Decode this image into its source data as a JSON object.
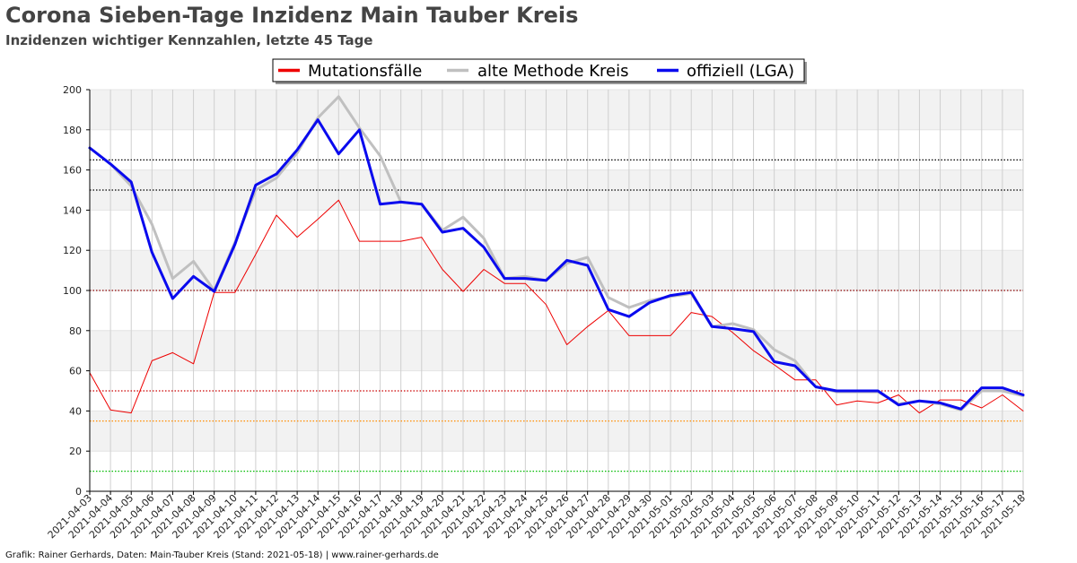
{
  "header": {
    "title": "Corona Sieben-Tage Inzidenz Main Tauber Kreis",
    "subtitle": "Inzidenzen wichtiger Kennzahlen, letzte 45 Tage"
  },
  "footer": {
    "text": "Grafik: Rainer Gerhards, Daten: Main-Tauber Kreis (Stand: 2021-05-18) | www.rainer-gerhards.de"
  },
  "chart_data": {
    "type": "line",
    "title": "Corona Sieben-Tage Inzidenz Main Tauber Kreis",
    "subtitle": "Inzidenzen wichtiger Kennzahlen, letzte 45 Tage",
    "xlabel": "",
    "ylabel": "",
    "ylim": [
      0,
      200
    ],
    "yticks": [
      0,
      20,
      40,
      60,
      80,
      100,
      120,
      140,
      160,
      180,
      200
    ],
    "grid": true,
    "legend_position": "top-center",
    "x": [
      "2021-04-03",
      "2021-04-04",
      "2021-04-05",
      "2021-04-06",
      "2021-04-07",
      "2021-04-08",
      "2021-04-09",
      "2021-04-10",
      "2021-04-11",
      "2021-04-12",
      "2021-04-13",
      "2021-04-14",
      "2021-04-15",
      "2021-04-16",
      "2021-04-17",
      "2021-04-18",
      "2021-04-19",
      "2021-04-20",
      "2021-04-21",
      "2021-04-22",
      "2021-04-23",
      "2021-04-24",
      "2021-04-25",
      "2021-04-26",
      "2021-04-27",
      "2021-04-28",
      "2021-04-29",
      "2021-04-30",
      "2021-05-01",
      "2021-05-02",
      "2021-05-03",
      "2021-05-04",
      "2021-05-05",
      "2021-05-06",
      "2021-05-07",
      "2021-05-08",
      "2021-05-09",
      "2021-05-10",
      "2021-05-11",
      "2021-05-12",
      "2021-05-13",
      "2021-05-14",
      "2021-05-15",
      "2021-05-16",
      "2021-05-17",
      "2021-05-18"
    ],
    "series": [
      {
        "name": "Mutationsfälle",
        "color": "#ee0000",
        "values": [
          59,
          40.5,
          39,
          65,
          69,
          63.5,
          99,
          99,
          118,
          137.5,
          126.5,
          135.5,
          145,
          124.5,
          124.5,
          124.5,
          126.5,
          110.5,
          99.5,
          110.5,
          103.5,
          103.5,
          93,
          73,
          82,
          90,
          77.5,
          77.5,
          77.5,
          89,
          87,
          79,
          70,
          63,
          55.5,
          55.5,
          43,
          45,
          44,
          48,
          39,
          45.5,
          45.5,
          41.5,
          48,
          40
        ]
      },
      {
        "name": "alte Methode Kreis",
        "color": "#c0c0c0",
        "values": [
          171,
          163,
          152,
          133,
          106,
          114.5,
          100,
          124,
          150,
          156,
          168.5,
          186,
          196.5,
          181,
          167,
          144,
          143,
          130,
          136.5,
          126,
          106,
          107,
          105,
          113.5,
          116.5,
          96.5,
          91.5,
          95,
          97,
          98.5,
          82,
          83.5,
          80.5,
          70.5,
          65,
          52,
          49.5,
          49.5,
          49.5,
          43.5,
          45,
          43.5,
          40.5,
          50,
          50,
          47.5
        ]
      },
      {
        "name": "offiziell (LGA)",
        "color": "#0a0aee",
        "values": [
          171,
          163,
          154,
          119,
          96,
          107,
          99.5,
          123,
          152.5,
          158,
          170,
          185,
          168,
          180,
          143,
          144,
          143,
          129,
          131,
          121.5,
          106,
          106,
          105,
          115,
          112.5,
          90.5,
          87,
          94,
          97.5,
          99,
          82,
          81,
          79.5,
          64.5,
          62.5,
          52,
          50,
          50,
          50,
          43,
          45,
          44,
          41,
          51.5,
          51.5,
          48
        ]
      }
    ],
    "reference_lines": [
      {
        "value": 165,
        "color": "#000000"
      },
      {
        "value": 150,
        "color": "#000000"
      },
      {
        "value": 100,
        "color": "#8b0000"
      },
      {
        "value": 50,
        "color": "#cc0000"
      },
      {
        "value": 35,
        "color": "#ff8c00"
      },
      {
        "value": 10,
        "color": "#00bb00"
      }
    ]
  }
}
